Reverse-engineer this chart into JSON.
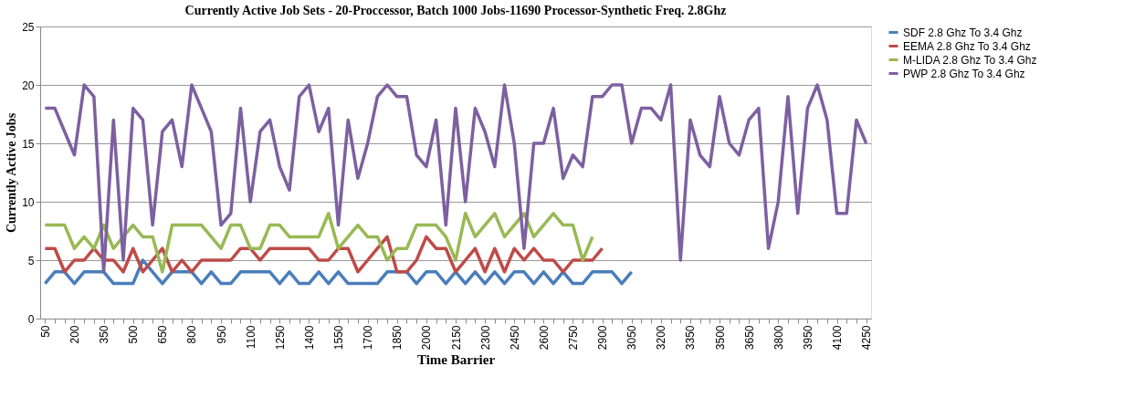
{
  "chart_data": {
    "type": "line",
    "title": "Currently Active Job Sets - 20-Proccessor, Batch 1000  Jobs-11690 Processor-Synthetic Freq. 2.8Ghz",
    "xlabel": "Time Barrier",
    "ylabel": "Currently Active Jobs",
    "categories": [
      "50",
      null,
      null,
      "200",
      null,
      null,
      "350",
      null,
      null,
      "500",
      null,
      null,
      "650",
      null,
      null,
      "800",
      null,
      null,
      "950",
      null,
      null,
      "1100",
      null,
      null,
      "1250",
      null,
      null,
      "1400",
      null,
      null,
      "1550",
      null,
      null,
      "1700",
      null,
      null,
      "1850",
      null,
      null,
      "2000",
      null,
      null,
      "2150",
      null,
      null,
      "2300",
      null,
      null,
      "2450",
      null,
      null,
      "2600",
      null,
      null,
      "2750",
      null,
      null,
      "2900",
      null,
      null,
      "3050",
      null,
      null,
      "3200",
      null,
      null,
      "3350",
      null,
      null,
      "3500",
      null,
      null,
      "3650",
      null,
      null,
      "3800",
      null,
      null,
      "3950",
      null,
      null,
      "4100",
      null,
      null,
      "4250"
    ],
    "series": [
      {
        "name": "SDF 2.8 Ghz To 3.4 Ghz",
        "color": "#4a7ebb",
        "values": [
          3,
          4,
          4,
          3,
          4,
          4,
          4,
          3,
          3,
          3,
          5,
          4,
          3,
          4,
          4,
          4,
          3,
          4,
          3,
          3,
          4,
          4,
          4,
          4,
          3,
          4,
          3,
          3,
          4,
          3,
          4,
          3,
          3,
          3,
          3,
          4,
          4,
          4,
          3,
          4,
          4,
          3,
          4,
          3,
          4,
          3,
          4,
          3,
          4,
          4,
          3,
          4,
          3,
          4,
          3,
          3,
          4,
          4,
          4,
          3,
          4,
          null,
          null,
          null,
          null,
          null,
          null,
          null,
          null,
          null,
          null,
          null,
          null,
          null,
          null,
          null,
          null,
          null,
          null,
          null,
          null,
          null,
          null,
          null,
          null
        ]
      },
      {
        "name": "EEMA 2.8 Ghz To 3.4 Ghz",
        "color": "#be4b48",
        "values": [
          6,
          6,
          4,
          5,
          5,
          6,
          5,
          5,
          4,
          6,
          4,
          5,
          6,
          4,
          5,
          4,
          5,
          5,
          5,
          5,
          6,
          6,
          5,
          6,
          6,
          6,
          6,
          6,
          5,
          5,
          6,
          6,
          4,
          5,
          6,
          7,
          4,
          4,
          5,
          7,
          6,
          6,
          4,
          5,
          6,
          4,
          6,
          4,
          6,
          5,
          6,
          5,
          5,
          4,
          5,
          5,
          5,
          6,
          null,
          null,
          null,
          null,
          null,
          null,
          null,
          null,
          null,
          null,
          null,
          null,
          null,
          null,
          null,
          null,
          null,
          null,
          null,
          null,
          null,
          null,
          null,
          null,
          null,
          null,
          null
        ]
      },
      {
        "name": "M-LIDA 2.8 Ghz To 3.4 Ghz",
        "color": "#98b954",
        "values": [
          8,
          8,
          8,
          6,
          7,
          6,
          8,
          6,
          7,
          8,
          7,
          7,
          4,
          8,
          8,
          8,
          8,
          7,
          6,
          8,
          8,
          6,
          6,
          8,
          8,
          7,
          7,
          7,
          7,
          9,
          6,
          7,
          8,
          7,
          7,
          5,
          6,
          6,
          8,
          8,
          8,
          7,
          5,
          9,
          7,
          8,
          9,
          7,
          8,
          9,
          7,
          8,
          9,
          8,
          8,
          5,
          7,
          null,
          null,
          null,
          null,
          null,
          null,
          null,
          null,
          null,
          null,
          null,
          null,
          null,
          null,
          null,
          null,
          null,
          null,
          null,
          null,
          null,
          null,
          null,
          null,
          null,
          null,
          null,
          null
        ]
      },
      {
        "name": "PWP 2.8 Ghz To 3.4 Ghz",
        "color": "#7d60a0",
        "values": [
          18,
          18,
          16,
          14,
          20,
          19,
          4,
          17,
          5,
          18,
          17,
          8,
          16,
          17,
          13,
          20,
          18,
          16,
          8,
          9,
          18,
          10,
          16,
          17,
          13,
          11,
          19,
          20,
          16,
          18,
          8,
          17,
          12,
          15,
          19,
          20,
          19,
          19,
          14,
          13,
          17,
          8,
          18,
          10,
          18,
          16,
          13,
          20,
          15,
          6,
          15,
          15,
          18,
          12,
          14,
          13,
          19,
          19,
          20,
          20,
          15,
          18,
          18,
          17,
          20,
          5,
          17,
          14,
          13,
          19,
          15,
          14,
          17,
          18,
          6,
          10,
          19,
          9,
          18,
          20,
          17,
          9,
          9,
          17,
          15
        ]
      }
    ],
    "ylim": [
      0,
      25
    ],
    "yticks": [
      0,
      5,
      10,
      15,
      20,
      25
    ],
    "grid": "y",
    "legend": "top right",
    "line_style": "solid",
    "marker": "none"
  }
}
